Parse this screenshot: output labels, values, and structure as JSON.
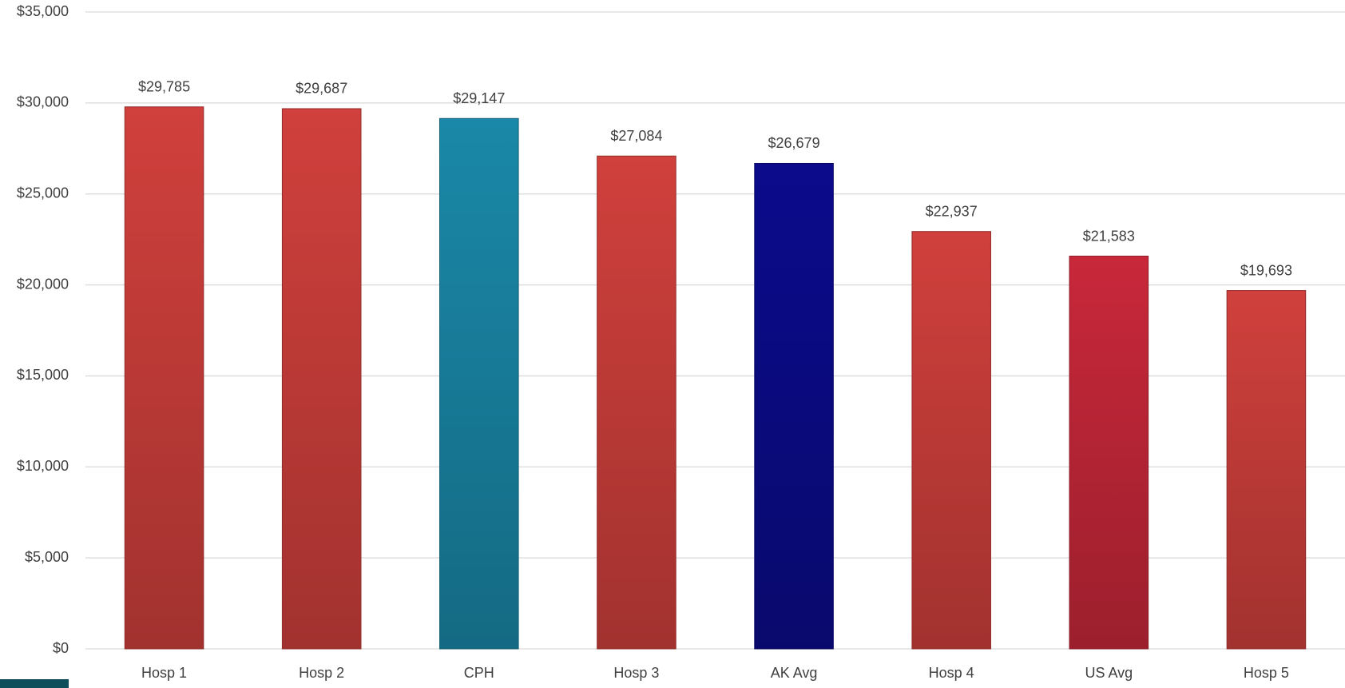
{
  "chart_data": {
    "type": "bar",
    "categories": [
      "Hosp 1",
      "Hosp 2",
      "CPH",
      "Hosp 3",
      "AK Avg",
      "Hosp 4",
      "US Avg",
      "Hosp 5"
    ],
    "values": [
      29785,
      29687,
      29147,
      27084,
      26679,
      22937,
      21583,
      19693
    ],
    "value_labels": [
      "$29,785",
      "$29,687",
      "$29,147",
      "$27,084",
      "$26,679",
      "$22,937",
      "$21,583",
      "$19,693"
    ],
    "colors": [
      "#d0403c",
      "#d0403c",
      "#1a88a8",
      "#d0403c",
      "#0b0b8c",
      "#d0403c",
      "#c8283a",
      "#d0403c"
    ],
    "ylim": [
      0,
      35000
    ],
    "yticks": [
      {
        "value": 0,
        "label": "$0"
      },
      {
        "value": 5000,
        "label": "$5,000"
      },
      {
        "value": 10000,
        "label": "$10,000"
      },
      {
        "value": 15000,
        "label": "$15,000"
      },
      {
        "value": 20000,
        "label": "$20,000"
      },
      {
        "value": 25000,
        "label": "$25,000"
      },
      {
        "value": 30000,
        "label": "$30,000"
      },
      {
        "value": 35000,
        "label": "$35,000"
      }
    ],
    "grid": true
  }
}
